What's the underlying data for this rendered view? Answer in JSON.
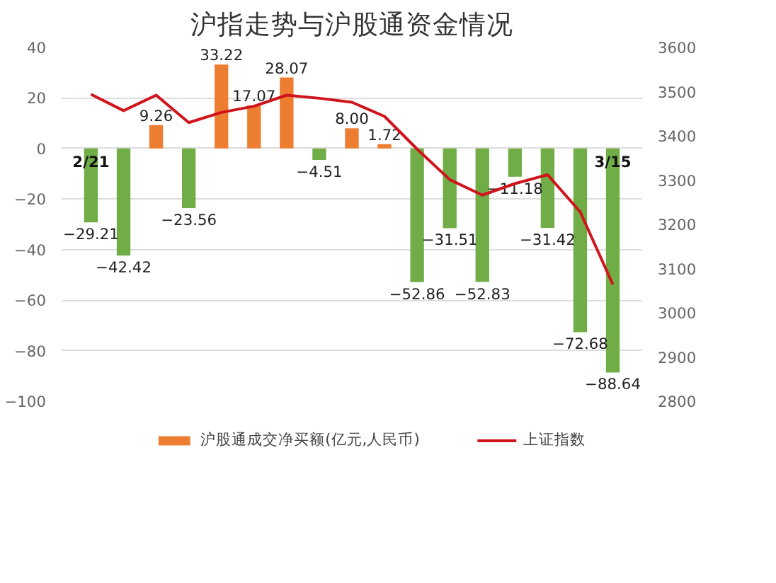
{
  "chart_data": {
    "type": "bar",
    "title": "沪指走势与沪股通资金情况",
    "categories": [
      "2/21",
      null,
      null,
      null,
      null,
      null,
      null,
      null,
      null,
      null,
      null,
      null,
      null,
      null,
      null,
      null,
      "3/15"
    ],
    "series": [
      {
        "name": "沪股通成交净买额(亿元,人民币)",
        "value_labels": [
          "−29.21",
          "−42.42",
          "9.26",
          "−23.56",
          "33.22",
          "17.07",
          "28.07",
          "−4.51",
          "8.00",
          "1.72",
          "−52.86",
          "−31.51",
          "−52.83",
          "−11.18",
          "−31.42",
          "−72.68",
          "−88.64"
        ],
        "color": "#ed7d31",
        "colors": [
          "#70ad47",
          "#70ad47",
          "#ed7d31",
          "#70ad47",
          "#ed7d31",
          "#ed7d31",
          "#ed7d31",
          "#70ad47",
          "#ed7d31",
          "#ed7d31",
          "#70ad47",
          "#70ad47",
          "#70ad47",
          "#70ad47",
          "#70ad47",
          "#70ad47",
          "#70ad47"
        ],
        "values": [
          -29.21,
          -42.42,
          9.26,
          -23.56,
          33.22,
          17.07,
          28.07,
          -4.51,
          8.0,
          1.72,
          -52.86,
          -31.51,
          -52.83,
          -11.18,
          -31.42,
          -72.68,
          -88.64
        ]
      },
      {
        "name": "上证指数",
        "type": "line",
        "axis": "y2",
        "color": "#d0141c",
        "values": [
          3494,
          3457,
          3492,
          3430,
          3453,
          3467,
          3492,
          3485,
          3476,
          3444,
          3370,
          3301,
          3266,
          3292,
          3312,
          3228,
          3064
        ]
      }
    ],
    "ylim": [
      -100,
      40
    ],
    "yticks": [
      -100,
      -80,
      -60,
      -40,
      -20,
      0,
      20,
      40
    ],
    "y2lim": [
      2800,
      3600
    ],
    "y2ticks": [
      2800,
      2900,
      3000,
      3100,
      3200,
      3300,
      3400,
      3500,
      3600
    ],
    "grid": "y",
    "legend": "bottom",
    "marker": "none",
    "line_style": "solid"
  }
}
